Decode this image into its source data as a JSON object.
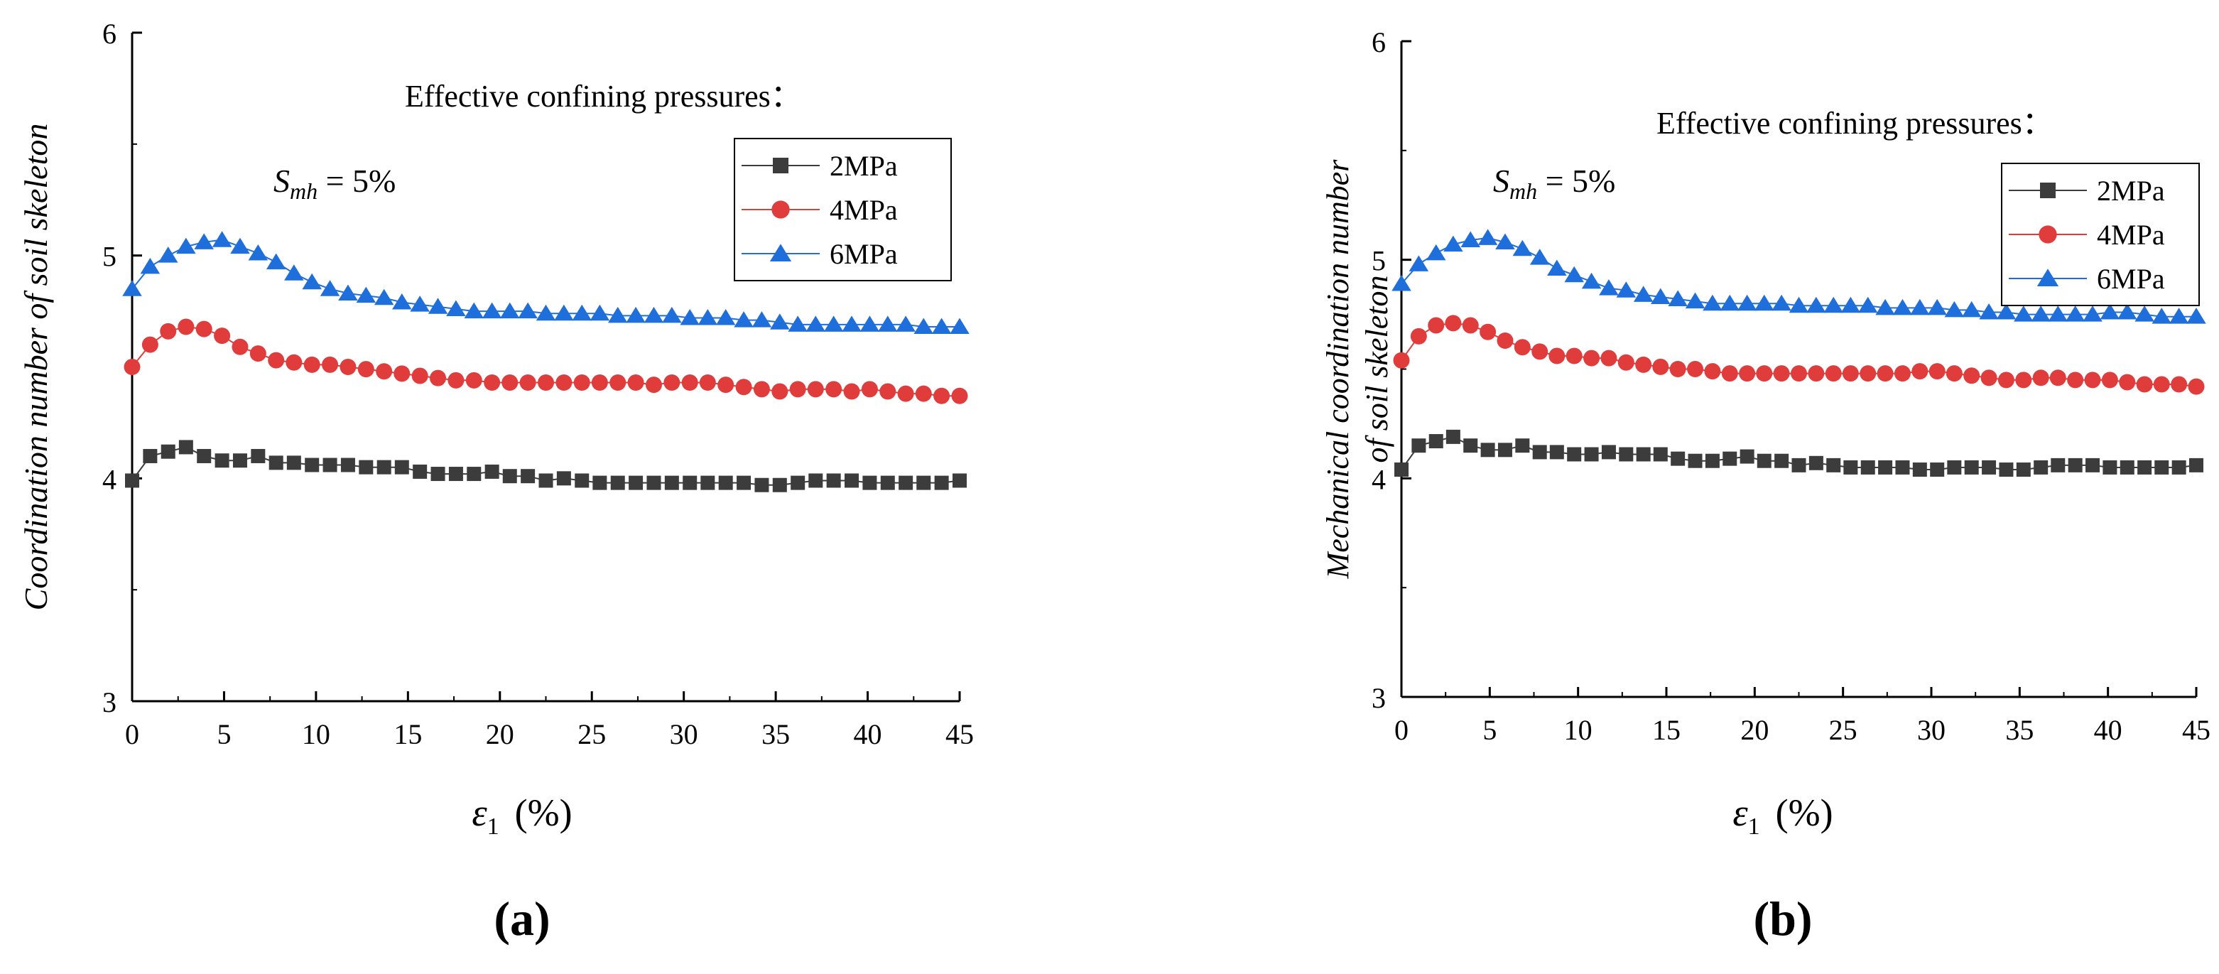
{
  "chart_data": [
    {
      "type": "line",
      "panel_label": "(a)",
      "ylabel": "Coordination number of soil skeleton",
      "xlabel_symbol": "ε",
      "xlabel_subscript": "1",
      "xlabel_unit": "(%)",
      "xlim": [
        0,
        45
      ],
      "ylim": [
        3,
        6
      ],
      "xticks": [
        "0",
        "5",
        "10",
        "15",
        "20",
        "25",
        "30",
        "35",
        "40",
        "45"
      ],
      "yticks": [
        "3",
        "4",
        "5",
        "6"
      ],
      "legend_title": "Effective confining pressures：",
      "annotation": {
        "symbol": "S",
        "subscript": "mh",
        "value": " = 5%"
      },
      "legend_position": "top-right",
      "series": [
        {
          "name": "2MPa",
          "marker": "square",
          "color": "#3c3c3c",
          "x": [
            0,
            0.98,
            1.96,
            2.93,
            3.91,
            4.89,
            5.87,
            6.85,
            7.83,
            8.8,
            9.78,
            10.76,
            11.74,
            12.72,
            13.7,
            14.67,
            15.65,
            16.63,
            17.61,
            18.59,
            19.57,
            20.54,
            21.52,
            22.5,
            23.48,
            24.46,
            25.43,
            26.41,
            27.39,
            28.37,
            29.35,
            30.33,
            31.3,
            32.28,
            33.26,
            34.24,
            35.22,
            36.2,
            37.17,
            38.15,
            39.13,
            40.11,
            41.09,
            42.07,
            43.04,
            44.02,
            45
          ],
          "values": [
            3.99,
            4.1,
            4.12,
            4.14,
            4.1,
            4.08,
            4.08,
            4.1,
            4.07,
            4.07,
            4.06,
            4.06,
            4.06,
            4.05,
            4.05,
            4.05,
            4.03,
            4.02,
            4.02,
            4.02,
            4.03,
            4.01,
            4.01,
            3.99,
            4.0,
            3.99,
            3.98,
            3.98,
            3.98,
            3.98,
            3.98,
            3.98,
            3.98,
            3.98,
            3.98,
            3.97,
            3.97,
            3.98,
            3.99,
            3.99,
            3.99,
            3.98,
            3.98,
            3.98,
            3.98,
            3.98,
            3.99
          ]
        },
        {
          "name": "4MPa",
          "marker": "circle",
          "color": "#e03c3c",
          "x": [
            0,
            0.98,
            1.96,
            2.93,
            3.91,
            4.89,
            5.87,
            6.85,
            7.83,
            8.8,
            9.78,
            10.76,
            11.74,
            12.72,
            13.7,
            14.67,
            15.65,
            16.63,
            17.61,
            18.59,
            19.57,
            20.54,
            21.52,
            22.5,
            23.48,
            24.46,
            25.43,
            26.41,
            27.39,
            28.37,
            29.35,
            30.33,
            31.3,
            32.28,
            33.26,
            34.24,
            35.22,
            36.2,
            37.17,
            38.15,
            39.13,
            40.11,
            41.09,
            42.07,
            43.04,
            44.02,
            45
          ],
          "values": [
            4.5,
            4.6,
            4.66,
            4.68,
            4.67,
            4.64,
            4.59,
            4.56,
            4.53,
            4.52,
            4.51,
            4.51,
            4.5,
            4.49,
            4.48,
            4.47,
            4.46,
            4.45,
            4.44,
            4.44,
            4.43,
            4.43,
            4.43,
            4.43,
            4.43,
            4.43,
            4.43,
            4.43,
            4.43,
            4.42,
            4.43,
            4.43,
            4.43,
            4.42,
            4.41,
            4.4,
            4.39,
            4.4,
            4.4,
            4.4,
            4.39,
            4.4,
            4.39,
            4.38,
            4.38,
            4.37,
            4.37
          ]
        },
        {
          "name": "6MPa",
          "marker": "triangle",
          "color": "#1e6fdc",
          "x": [
            0,
            0.98,
            1.96,
            2.93,
            3.91,
            4.89,
            5.87,
            6.85,
            7.83,
            8.8,
            9.78,
            10.76,
            11.74,
            12.72,
            13.7,
            14.67,
            15.65,
            16.63,
            17.61,
            18.59,
            19.57,
            20.54,
            21.52,
            22.5,
            23.48,
            24.46,
            25.43,
            26.41,
            27.39,
            28.37,
            29.35,
            30.33,
            31.3,
            32.28,
            33.26,
            34.24,
            35.22,
            36.2,
            37.17,
            38.15,
            39.13,
            40.11,
            41.09,
            42.07,
            43.04,
            44.02,
            45
          ],
          "values": [
            4.85,
            4.95,
            5.0,
            5.04,
            5.06,
            5.07,
            5.04,
            5.01,
            4.97,
            4.92,
            4.88,
            4.85,
            4.83,
            4.82,
            4.81,
            4.79,
            4.78,
            4.77,
            4.76,
            4.75,
            4.75,
            4.75,
            4.75,
            4.74,
            4.74,
            4.74,
            4.74,
            4.73,
            4.73,
            4.73,
            4.73,
            4.72,
            4.72,
            4.72,
            4.71,
            4.71,
            4.7,
            4.69,
            4.69,
            4.69,
            4.69,
            4.69,
            4.69,
            4.69,
            4.68,
            4.68,
            4.68
          ]
        }
      ]
    },
    {
      "type": "line",
      "panel_label": "(b)",
      "ylabel": "Mechanical coordination number of soil skeleton",
      "ylabel_lines": [
        "Mechanical coordination number",
        "of soil skeleton"
      ],
      "xlabel_symbol": "ε",
      "xlabel_subscript": "1",
      "xlabel_unit": "(%)",
      "xlim": [
        0,
        45
      ],
      "ylim": [
        3,
        6
      ],
      "xticks": [
        "0",
        "5",
        "10",
        "15",
        "20",
        "25",
        "30",
        "35",
        "40",
        "45"
      ],
      "yticks": [
        "3",
        "4",
        "5",
        "6"
      ],
      "legend_title": "Effective confining pressures：",
      "annotation": {
        "symbol": "S",
        "subscript": "mh",
        "value": " = 5%"
      },
      "legend_position": "top-right",
      "series": [
        {
          "name": "2MPa",
          "marker": "square",
          "color": "#3c3c3c",
          "x": [
            0,
            0.98,
            1.96,
            2.93,
            3.91,
            4.89,
            5.87,
            6.85,
            7.83,
            8.8,
            9.78,
            10.76,
            11.74,
            12.72,
            13.7,
            14.67,
            15.65,
            16.63,
            17.61,
            18.59,
            19.57,
            20.54,
            21.52,
            22.5,
            23.48,
            24.46,
            25.43,
            26.41,
            27.39,
            28.37,
            29.35,
            30.33,
            31.3,
            32.28,
            33.26,
            34.24,
            35.22,
            36.2,
            37.17,
            38.15,
            39.13,
            40.11,
            41.09,
            42.07,
            43.04,
            44.02,
            45
          ],
          "values": [
            4.04,
            4.15,
            4.17,
            4.19,
            4.15,
            4.13,
            4.13,
            4.15,
            4.12,
            4.12,
            4.11,
            4.11,
            4.12,
            4.11,
            4.11,
            4.11,
            4.09,
            4.08,
            4.08,
            4.09,
            4.1,
            4.08,
            4.08,
            4.06,
            4.07,
            4.06,
            4.05,
            4.05,
            4.05,
            4.05,
            4.04,
            4.04,
            4.05,
            4.05,
            4.05,
            4.04,
            4.04,
            4.05,
            4.06,
            4.06,
            4.06,
            4.05,
            4.05,
            4.05,
            4.05,
            4.05,
            4.06
          ]
        },
        {
          "name": "4MPa",
          "marker": "circle",
          "color": "#e03c3c",
          "x": [
            0,
            0.98,
            1.96,
            2.93,
            3.91,
            4.89,
            5.87,
            6.85,
            7.83,
            8.8,
            9.78,
            10.76,
            11.74,
            12.72,
            13.7,
            14.67,
            15.65,
            16.63,
            17.61,
            18.59,
            19.57,
            20.54,
            21.52,
            22.5,
            23.48,
            24.46,
            25.43,
            26.41,
            27.39,
            28.37,
            29.35,
            30.33,
            31.3,
            32.28,
            33.26,
            34.24,
            35.22,
            36.2,
            37.17,
            38.15,
            39.13,
            40.11,
            41.09,
            42.07,
            43.04,
            44.02,
            45
          ],
          "values": [
            4.54,
            4.65,
            4.7,
            4.71,
            4.7,
            4.67,
            4.63,
            4.6,
            4.58,
            4.56,
            4.56,
            4.55,
            4.55,
            4.53,
            4.52,
            4.51,
            4.5,
            4.5,
            4.49,
            4.48,
            4.48,
            4.48,
            4.48,
            4.48,
            4.48,
            4.48,
            4.48,
            4.48,
            4.48,
            4.48,
            4.49,
            4.49,
            4.48,
            4.47,
            4.46,
            4.45,
            4.45,
            4.46,
            4.46,
            4.45,
            4.45,
            4.45,
            4.44,
            4.43,
            4.43,
            4.43,
            4.42
          ]
        },
        {
          "name": "6MPa",
          "marker": "triangle",
          "color": "#1e6fdc",
          "x": [
            0,
            0.98,
            1.96,
            2.93,
            3.91,
            4.89,
            5.87,
            6.85,
            7.83,
            8.8,
            9.78,
            10.76,
            11.74,
            12.72,
            13.7,
            14.67,
            15.65,
            16.63,
            17.61,
            18.59,
            19.57,
            20.54,
            21.52,
            22.5,
            23.48,
            24.46,
            25.43,
            26.41,
            27.39,
            28.37,
            29.35,
            30.33,
            31.3,
            32.28,
            33.26,
            34.24,
            35.22,
            36.2,
            37.17,
            38.15,
            39.13,
            40.11,
            41.09,
            42.07,
            43.04,
            44.02,
            45
          ],
          "values": [
            4.89,
            4.98,
            5.03,
            5.07,
            5.09,
            5.1,
            5.08,
            5.05,
            5.01,
            4.96,
            4.93,
            4.9,
            4.87,
            4.86,
            4.84,
            4.83,
            4.82,
            4.81,
            4.8,
            4.8,
            4.8,
            4.8,
            4.8,
            4.79,
            4.79,
            4.79,
            4.79,
            4.79,
            4.78,
            4.78,
            4.78,
            4.78,
            4.77,
            4.77,
            4.76,
            4.76,
            4.75,
            4.75,
            4.75,
            4.75,
            4.75,
            4.76,
            4.76,
            4.75,
            4.74,
            4.74,
            4.74
          ]
        }
      ]
    }
  ]
}
